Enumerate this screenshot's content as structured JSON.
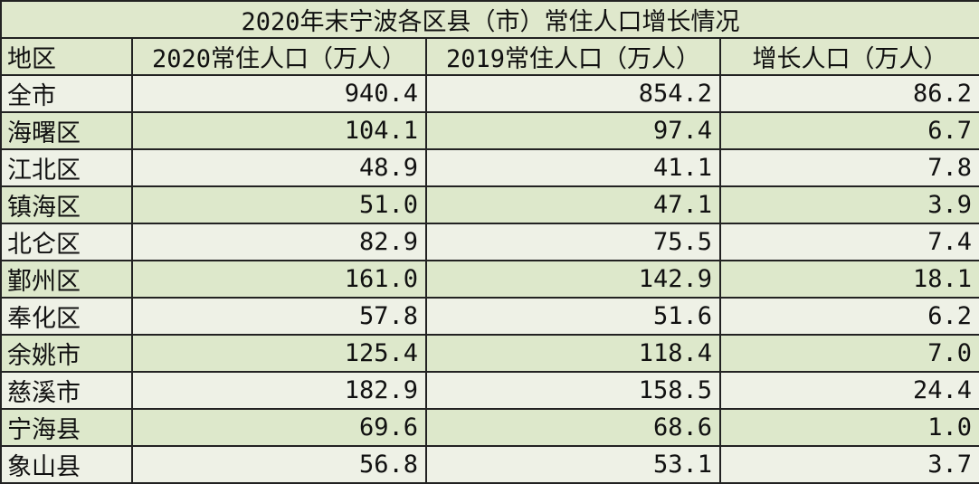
{
  "title": "2020年末宁波各区县（市）常住人口增长情况",
  "headers": [
    "地区",
    "2020常住人口（万人）",
    "2019常住人口（万人）",
    "增长人口（万人）"
  ],
  "rows": [
    [
      "全市",
      "940.4",
      "854.2",
      "86.2"
    ],
    [
      "海曙区",
      "104.1",
      "97.4",
      "6.7"
    ],
    [
      "江北区",
      "48.9",
      "41.1",
      "7.8"
    ],
    [
      "镇海区",
      "51.0",
      "47.1",
      "3.9"
    ],
    [
      "北仑区",
      "82.9",
      "75.5",
      "7.4"
    ],
    [
      "鄞州区",
      "161.0",
      "142.9",
      "18.1"
    ],
    [
      "奉化区",
      "57.8",
      "51.6",
      "6.2"
    ],
    [
      "余姚市",
      "125.4",
      "118.4",
      "7.0"
    ],
    [
      "慈溪市",
      "182.9",
      "158.5",
      "24.4"
    ],
    [
      "宁海县",
      "69.6",
      "68.6",
      "1.0"
    ],
    [
      "象山县",
      "56.8",
      "53.1",
      "3.7"
    ]
  ],
  "colors": {
    "header_bg": "#dfe8cc",
    "row_light": "#eef1e6",
    "row_green": "#dde8cb"
  }
}
